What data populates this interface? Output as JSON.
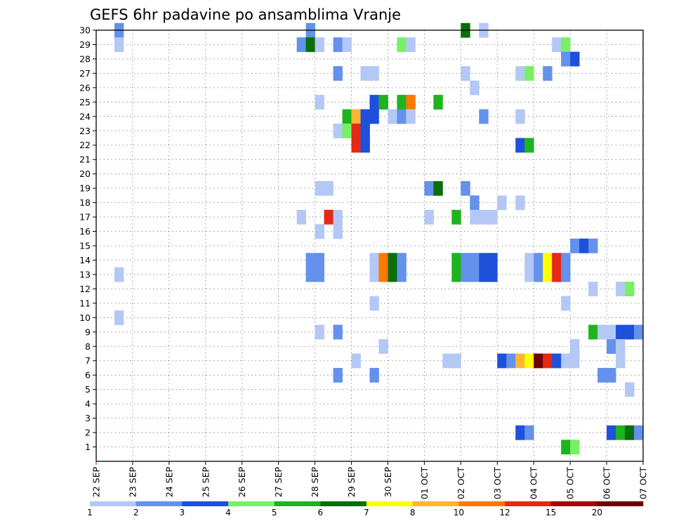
{
  "chart_data": {
    "type": "heatmap",
    "title": "GEFS 6hr padavine po ansamblima Vranje",
    "xlabel": "",
    "ylabel": "",
    "x_ticks": [
      "22 SEP",
      "23 SEP",
      "24 SEP",
      "25 SEP",
      "26 SEP",
      "27 SEP",
      "28 SEP",
      "29 SEP",
      "30 SEP",
      "01 OCT",
      "02 OCT",
      "03 OCT",
      "04 OCT",
      "05 OCT",
      "06 OCT",
      "07 OCT"
    ],
    "y_ticks": [
      1,
      2,
      3,
      4,
      5,
      6,
      7,
      8,
      9,
      10,
      11,
      12,
      13,
      14,
      15,
      16,
      17,
      18,
      19,
      20,
      21,
      22,
      23,
      24,
      25,
      26,
      27,
      28,
      29,
      30
    ],
    "xlim": [
      0,
      15
    ],
    "ylim": [
      0,
      30
    ],
    "grid": true,
    "time_step_hours": 6,
    "colorbar": {
      "levels": [
        "1",
        "2",
        "3",
        "4",
        "5",
        "6",
        "7",
        "8",
        "10",
        "12",
        "15",
        "20"
      ],
      "colors": [
        "#b4c8f5",
        "#6491ec",
        "#1e50dc",
        "#78f064",
        "#1eb41e",
        "#0a6e0a",
        "#ffff00",
        "#ffb432",
        "#ff7800",
        "#e62814",
        "#a50000",
        "#6e0000"
      ]
    },
    "cells": [
      {
        "x": 0.625,
        "y": 30,
        "c": 1
      },
      {
        "x": 5.875,
        "y": 30,
        "c": 1
      },
      {
        "x": 10.125,
        "y": 30,
        "c": 5
      },
      {
        "x": 10.625,
        "y": 30,
        "c": 0
      },
      {
        "x": 0.625,
        "y": 29,
        "c": 0
      },
      {
        "x": 5.625,
        "y": 29,
        "c": 1
      },
      {
        "x": 5.875,
        "y": 29,
        "c": 5
      },
      {
        "x": 6.125,
        "y": 29,
        "c": 0
      },
      {
        "x": 6.625,
        "y": 29,
        "c": 1
      },
      {
        "x": 6.875,
        "y": 29,
        "c": 0
      },
      {
        "x": 8.375,
        "y": 29,
        "c": 3
      },
      {
        "x": 8.625,
        "y": 29,
        "c": 0
      },
      {
        "x": 12.625,
        "y": 29,
        "c": 0
      },
      {
        "x": 12.875,
        "y": 29,
        "c": 3
      },
      {
        "x": 12.875,
        "y": 28,
        "c": 1
      },
      {
        "x": 13.125,
        "y": 28,
        "c": 2
      },
      {
        "x": 6.625,
        "y": 27,
        "c": 1
      },
      {
        "x": 7.375,
        "y": 27,
        "c": 0
      },
      {
        "x": 7.625,
        "y": 27,
        "c": 0
      },
      {
        "x": 10.125,
        "y": 27,
        "c": 0
      },
      {
        "x": 11.625,
        "y": 27,
        "c": 0
      },
      {
        "x": 11.875,
        "y": 27,
        "c": 3
      },
      {
        "x": 12.375,
        "y": 27,
        "c": 1
      },
      {
        "x": 10.375,
        "y": 26,
        "c": 0
      },
      {
        "x": 6.125,
        "y": 25,
        "c": 0
      },
      {
        "x": 7.625,
        "y": 25,
        "c": 2
      },
      {
        "x": 7.875,
        "y": 25,
        "c": 4
      },
      {
        "x": 8.375,
        "y": 25,
        "c": 4
      },
      {
        "x": 8.625,
        "y": 25,
        "c": 8
      },
      {
        "x": 9.375,
        "y": 25,
        "c": 4
      },
      {
        "x": 6.875,
        "y": 24,
        "c": 4
      },
      {
        "x": 7.125,
        "y": 24,
        "c": 7
      },
      {
        "x": 7.375,
        "y": 24,
        "c": 2
      },
      {
        "x": 7.625,
        "y": 24,
        "c": 2
      },
      {
        "x": 8.125,
        "y": 24,
        "c": 0
      },
      {
        "x": 8.375,
        "y": 24,
        "c": 1
      },
      {
        "x": 8.625,
        "y": 24,
        "c": 0
      },
      {
        "x": 10.625,
        "y": 24,
        "c": 1
      },
      {
        "x": 11.625,
        "y": 24,
        "c": 0
      },
      {
        "x": 6.625,
        "y": 23,
        "c": 0
      },
      {
        "x": 6.875,
        "y": 23,
        "c": 3
      },
      {
        "x": 7.125,
        "y": 23,
        "c": 9
      },
      {
        "x": 7.375,
        "y": 23,
        "c": 2
      },
      {
        "x": 7.125,
        "y": 22,
        "c": 9
      },
      {
        "x": 7.375,
        "y": 22,
        "c": 2
      },
      {
        "x": 11.625,
        "y": 22,
        "c": 2
      },
      {
        "x": 11.875,
        "y": 22,
        "c": 4
      },
      {
        "x": 6.125,
        "y": 19,
        "c": 0
      },
      {
        "x": 6.375,
        "y": 19,
        "c": 0
      },
      {
        "x": 9.125,
        "y": 19,
        "c": 1
      },
      {
        "x": 9.375,
        "y": 19,
        "c": 5
      },
      {
        "x": 10.125,
        "y": 19,
        "c": 1
      },
      {
        "x": 10.375,
        "y": 18,
        "c": 1
      },
      {
        "x": 11.125,
        "y": 18,
        "c": 0
      },
      {
        "x": 11.625,
        "y": 18,
        "c": 0
      },
      {
        "x": 5.625,
        "y": 17,
        "c": 0
      },
      {
        "x": 6.375,
        "y": 17,
        "c": 9
      },
      {
        "x": 6.625,
        "y": 17,
        "c": 0
      },
      {
        "x": 9.125,
        "y": 17,
        "c": 0
      },
      {
        "x": 9.875,
        "y": 17,
        "c": 4
      },
      {
        "x": 10.375,
        "y": 17,
        "c": 0
      },
      {
        "x": 10.625,
        "y": 17,
        "c": 0
      },
      {
        "x": 10.875,
        "y": 17,
        "c": 0
      },
      {
        "x": 6.125,
        "y": 16,
        "c": 0
      },
      {
        "x": 6.625,
        "y": 16,
        "c": 0
      },
      {
        "x": 13.125,
        "y": 15,
        "c": 1
      },
      {
        "x": 13.375,
        "y": 15,
        "c": 2
      },
      {
        "x": 13.625,
        "y": 15,
        "c": 1
      },
      {
        "x": 5.875,
        "y": 14,
        "c": 1
      },
      {
        "x": 6.125,
        "y": 14,
        "c": 1
      },
      {
        "x": 7.625,
        "y": 14,
        "c": 0
      },
      {
        "x": 7.875,
        "y": 14,
        "c": 8
      },
      {
        "x": 8.125,
        "y": 14,
        "c": 5
      },
      {
        "x": 8.375,
        "y": 14,
        "c": 1
      },
      {
        "x": 9.875,
        "y": 14,
        "c": 4
      },
      {
        "x": 10.125,
        "y": 14,
        "c": 1
      },
      {
        "x": 10.375,
        "y": 14,
        "c": 1
      },
      {
        "x": 10.625,
        "y": 14,
        "c": 2
      },
      {
        "x": 10.875,
        "y": 14,
        "c": 2
      },
      {
        "x": 11.875,
        "y": 14,
        "c": 0
      },
      {
        "x": 12.125,
        "y": 14,
        "c": 1
      },
      {
        "x": 12.375,
        "y": 14,
        "c": 6
      },
      {
        "x": 12.625,
        "y": 14,
        "c": 9
      },
      {
        "x": 12.875,
        "y": 14,
        "c": 1
      },
      {
        "x": 0.625,
        "y": 13,
        "c": 0
      },
      {
        "x": 5.875,
        "y": 13,
        "c": 1
      },
      {
        "x": 6.125,
        "y": 13,
        "c": 1
      },
      {
        "x": 7.625,
        "y": 13,
        "c": 0
      },
      {
        "x": 7.875,
        "y": 13,
        "c": 8
      },
      {
        "x": 8.125,
        "y": 13,
        "c": 5
      },
      {
        "x": 8.375,
        "y": 13,
        "c": 1
      },
      {
        "x": 9.875,
        "y": 13,
        "c": 4
      },
      {
        "x": 10.125,
        "y": 13,
        "c": 1
      },
      {
        "x": 10.375,
        "y": 13,
        "c": 1
      },
      {
        "x": 10.625,
        "y": 13,
        "c": 2
      },
      {
        "x": 10.875,
        "y": 13,
        "c": 2
      },
      {
        "x": 11.875,
        "y": 13,
        "c": 0
      },
      {
        "x": 12.125,
        "y": 13,
        "c": 1
      },
      {
        "x": 12.375,
        "y": 13,
        "c": 6
      },
      {
        "x": 12.625,
        "y": 13,
        "c": 9
      },
      {
        "x": 12.875,
        "y": 13,
        "c": 1
      },
      {
        "x": 13.625,
        "y": 12,
        "c": 0
      },
      {
        "x": 14.375,
        "y": 12,
        "c": 0
      },
      {
        "x": 14.625,
        "y": 12,
        "c": 3
      },
      {
        "x": 7.625,
        "y": 11,
        "c": 0
      },
      {
        "x": 12.875,
        "y": 11,
        "c": 0
      },
      {
        "x": 0.625,
        "y": 10,
        "c": 0
      },
      {
        "x": 6.125,
        "y": 9,
        "c": 0
      },
      {
        "x": 6.625,
        "y": 9,
        "c": 1
      },
      {
        "x": 13.625,
        "y": 9,
        "c": 4
      },
      {
        "x": 13.875,
        "y": 9,
        "c": 0
      },
      {
        "x": 14.125,
        "y": 9,
        "c": 0
      },
      {
        "x": 14.375,
        "y": 9,
        "c": 2
      },
      {
        "x": 14.625,
        "y": 9,
        "c": 2
      },
      {
        "x": 14.875,
        "y": 9,
        "c": 1
      },
      {
        "x": 7.875,
        "y": 8,
        "c": 0
      },
      {
        "x": 13.125,
        "y": 8,
        "c": 0
      },
      {
        "x": 14.125,
        "y": 8,
        "c": 1
      },
      {
        "x": 14.375,
        "y": 8,
        "c": 0
      },
      {
        "x": 7.125,
        "y": 7,
        "c": 0
      },
      {
        "x": 9.625,
        "y": 7,
        "c": 0
      },
      {
        "x": 9.875,
        "y": 7,
        "c": 0
      },
      {
        "x": 11.125,
        "y": 7,
        "c": 2
      },
      {
        "x": 11.375,
        "y": 7,
        "c": 1
      },
      {
        "x": 11.625,
        "y": 7,
        "c": 7
      },
      {
        "x": 11.875,
        "y": 7,
        "c": 6
      },
      {
        "x": 12.125,
        "y": 7,
        "c": 11
      },
      {
        "x": 12.375,
        "y": 7,
        "c": 9
      },
      {
        "x": 12.625,
        "y": 7,
        "c": 2
      },
      {
        "x": 12.875,
        "y": 7,
        "c": 0
      },
      {
        "x": 13.125,
        "y": 7,
        "c": 0
      },
      {
        "x": 14.375,
        "y": 7,
        "c": 0
      },
      {
        "x": 6.625,
        "y": 6,
        "c": 1
      },
      {
        "x": 7.625,
        "y": 6,
        "c": 1
      },
      {
        "x": 13.875,
        "y": 6,
        "c": 1
      },
      {
        "x": 14.125,
        "y": 6,
        "c": 1
      },
      {
        "x": 14.625,
        "y": 5,
        "c": 0
      },
      {
        "x": 11.625,
        "y": 2,
        "c": 2
      },
      {
        "x": 11.875,
        "y": 2,
        "c": 1
      },
      {
        "x": 14.125,
        "y": 2,
        "c": 2
      },
      {
        "x": 14.375,
        "y": 2,
        "c": 4
      },
      {
        "x": 14.625,
        "y": 2,
        "c": 5
      },
      {
        "x": 14.875,
        "y": 2,
        "c": 1
      },
      {
        "x": 12.875,
        "y": 1,
        "c": 4
      },
      {
        "x": 13.125,
        "y": 1,
        "c": 3
      }
    ]
  }
}
